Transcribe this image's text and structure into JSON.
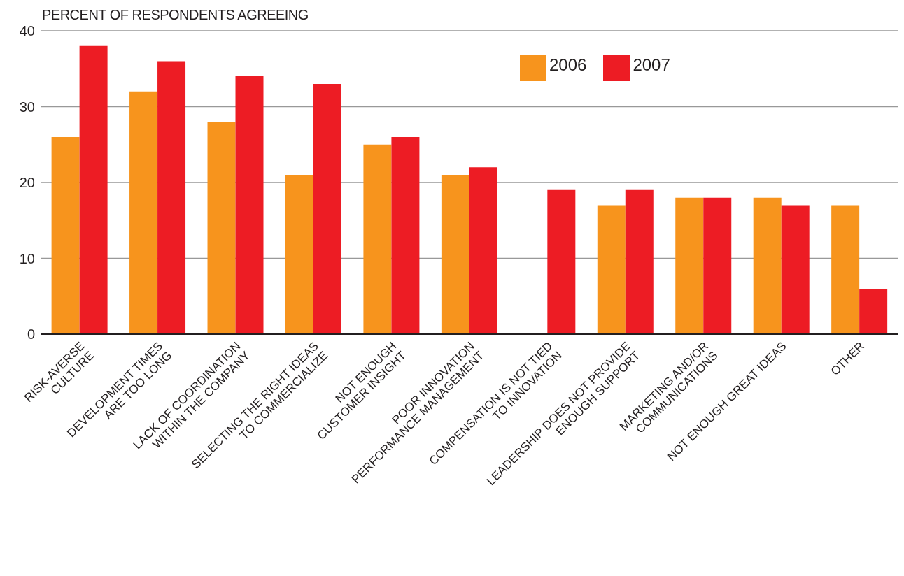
{
  "chart_data": {
    "type": "bar",
    "ylabel": "PERCENT OF RESPONDENTS AGREEING",
    "categories": [
      "RISK-AVERSE\nCULTURE",
      "DEVELOPMENT TIMES\nARE TOO LONG",
      "LACK OF COORDINATION\nWITHIN THE COMPANY",
      "SELECTING THE RIGHT IDEAS\nTO COMMERCIALIZE",
      "NOT ENOUGH\nCUSTOMER INSIGHT",
      "POOR INNOVATION\nPERFORMANCE MANAGEMENT",
      "COMPENSATION IS NOT TIED\nTO INNOVATION",
      "LEADERSHIP DOES NOT PROVIDE\nENOUGH SUPPORT",
      "MARKETING AND/OR\nCOMMUNICATIONS",
      "NOT ENOUGH GREAT IDEAS",
      "OTHER"
    ],
    "series": [
      {
        "name": "2006",
        "color": "#f7941d",
        "values": [
          26,
          32,
          28,
          21,
          25,
          21,
          null,
          17,
          18,
          18,
          17
        ]
      },
      {
        "name": "2007",
        "color": "#ed1c24",
        "values": [
          38,
          36,
          34,
          33,
          26,
          22,
          19,
          19,
          18,
          17,
          6
        ]
      }
    ],
    "ylim": [
      0,
      40
    ],
    "yticks": [
      0,
      10,
      20,
      30,
      40
    ],
    "grid": "y",
    "legend": "top right"
  }
}
